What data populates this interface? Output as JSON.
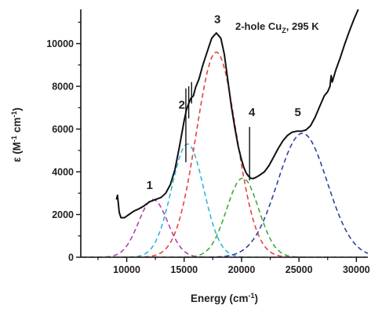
{
  "chart_data": {
    "type": "line",
    "title": "",
    "annotation": {
      "main": "2-hole Cu",
      "sub": "Z",
      "suffix": ", 295 K"
    },
    "xlabel": {
      "main": "Energy (cm",
      "sup": "-1",
      "end": ")"
    },
    "ylabel": {
      "main": "ε (M",
      "sup1": "-1",
      "mid": " cm",
      "sup2": "-1",
      "end": ")"
    },
    "xlim": [
      6000,
      31000
    ],
    "ylim": [
      0,
      11600
    ],
    "xticks": [
      10000,
      15000,
      20000,
      25000,
      30000
    ],
    "yticks": [
      0,
      2000,
      4000,
      6000,
      8000,
      10000
    ],
    "xtick_labels": [
      "10000",
      "15000",
      "20000",
      "25000",
      "30000"
    ],
    "ytick_labels": [
      "0",
      "2000",
      "4000",
      "6000",
      "8000",
      "10000"
    ],
    "grid": false,
    "legend": "none",
    "spectrum": {
      "name": "",
      "color": "#111111",
      "x": [
        9100,
        9200,
        9350,
        9500,
        9800,
        10200,
        10600,
        11000,
        11500,
        12000,
        12500,
        13000,
        13400,
        13800,
        14200,
        14600,
        15000,
        15200,
        15400,
        15600,
        15800,
        16000,
        16300,
        16600,
        17000,
        17400,
        17800,
        18200,
        18500,
        18800,
        19100,
        19400,
        19700,
        20000,
        20200,
        20400,
        20600,
        20800,
        21000,
        21300,
        21600,
        22000,
        22400,
        22800,
        23200,
        23600,
        24000,
        24400,
        24800,
        25200,
        25600,
        26000,
        26400,
        26800,
        27200,
        27500,
        27700,
        27800,
        27900,
        28200,
        28600,
        29000,
        29400,
        29800,
        30200,
        30600,
        31000
      ],
      "y": [
        2700,
        2900,
        2100,
        1850,
        1850,
        2000,
        2150,
        2250,
        2400,
        2600,
        2700,
        2800,
        3000,
        3400,
        4100,
        5200,
        6400,
        6900,
        7200,
        7450,
        7550,
        7950,
        8350,
        8950,
        9600,
        10250,
        10500,
        10250,
        9500,
        8300,
        7100,
        6100,
        5200,
        4550,
        4200,
        3950,
        3800,
        3700,
        3680,
        3750,
        3850,
        4000,
        4300,
        4700,
        5100,
        5450,
        5700,
        5850,
        5900,
        5900,
        5950,
        6150,
        6550,
        7050,
        7550,
        7750,
        8000,
        8500,
        8200,
        8750,
        9350,
        10000,
        10600,
        11150,
        11650,
        12150,
        12700
      ],
      "spikes": [
        [
          15150,
          4450,
          7900
        ],
        [
          15400,
          6500,
          8000
        ],
        [
          15650,
          7200,
          8200
        ],
        [
          20700,
          3600,
          6100
        ]
      ]
    },
    "gaussian_components": [
      {
        "label": "1",
        "color": "#b040b0",
        "center": 12300,
        "amplitude": 2700,
        "fwhm": 3000,
        "label_x": 12000,
        "label_y": 3200
      },
      {
        "label": "2",
        "color": "#30b8d8",
        "center": 15300,
        "amplitude": 5300,
        "fwhm": 3300,
        "label_x": 14800,
        "label_y": 6950
      },
      {
        "label": "3",
        "color": "#e84040",
        "center": 17800,
        "amplitude": 9600,
        "fwhm": 4100,
        "label_x": 17900,
        "label_y": 10950
      },
      {
        "label": "4",
        "color": "#40a840",
        "center": 20100,
        "amplitude": 3700,
        "fwhm": 3300,
        "label_x": 20900,
        "label_y": 6600
      },
      {
        "label": "5",
        "color": "#3040a0",
        "center": 25300,
        "amplitude": 5800,
        "fwhm": 5100,
        "label_x": 24900,
        "label_y": 6600
      }
    ]
  }
}
